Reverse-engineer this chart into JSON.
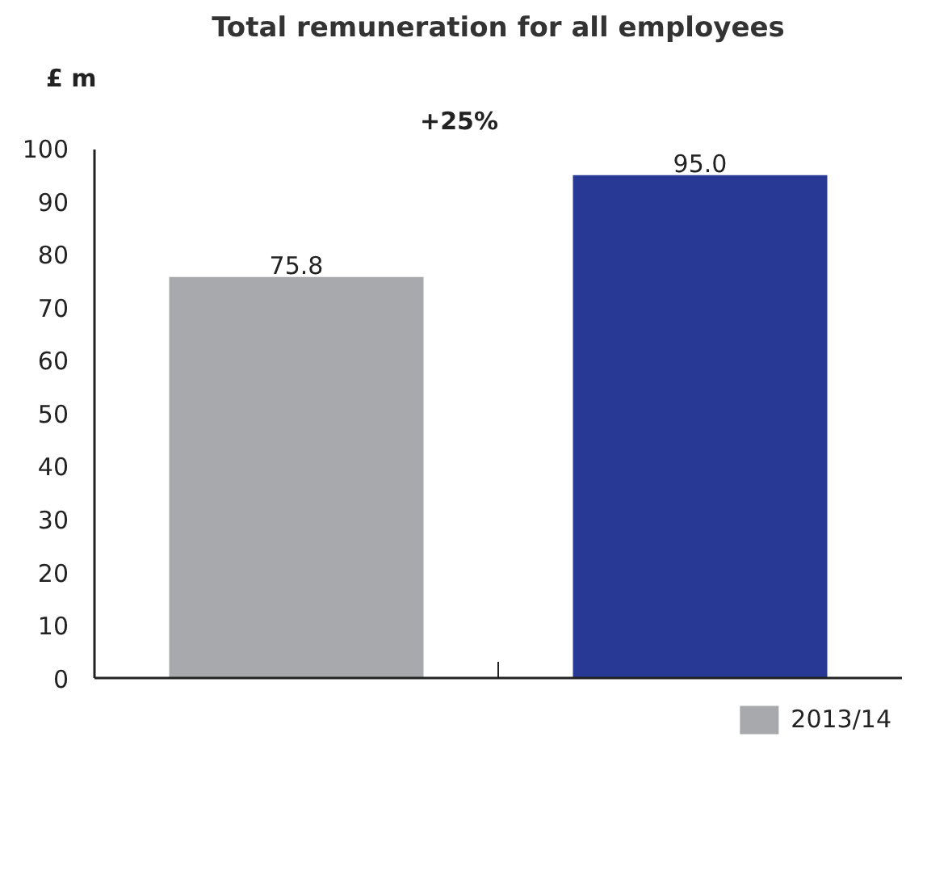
{
  "chart_data": {
    "type": "bar",
    "title": "Total remuneration for all employees",
    "ylabel": "£ m",
    "annotations": [
      "+25%"
    ],
    "categories": [
      null,
      null
    ],
    "series": [
      {
        "name": "2013/14",
        "color": "#a7a9ac",
        "values": [
          75.8,
          null
        ],
        "value_labels": [
          "75.8",
          null
        ]
      },
      {
        "color": "#273895",
        "values": [
          null,
          95.0
        ],
        "value_labels": [
          null,
          "95.0"
        ]
      }
    ],
    "stacked": true,
    "ylim": [
      0,
      100
    ],
    "yticks": [
      0,
      10,
      20,
      30,
      40,
      50,
      60,
      70,
      80,
      90,
      100
    ],
    "legend": "bottom right",
    "grid": false
  }
}
